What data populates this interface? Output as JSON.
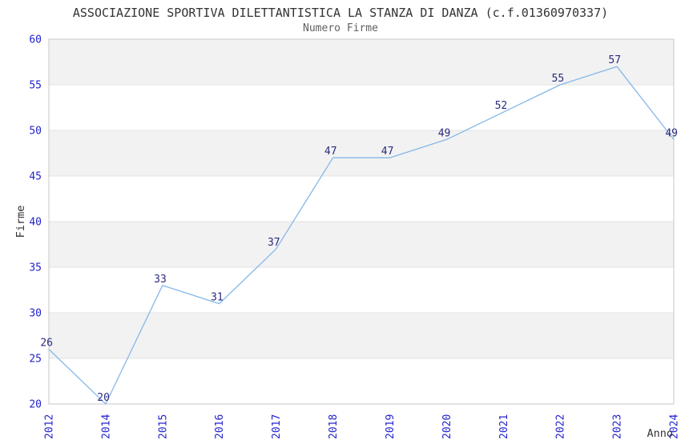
{
  "chart_data": {
    "type": "line",
    "title": "ASSOCIAZIONE SPORTIVA DILETTANTISTICA LA STANZA DI DANZA (c.f.01360970337)",
    "subtitle": "Numero Firme",
    "x": [
      "2012",
      "2014",
      "2015",
      "2016",
      "2017",
      "2018",
      "2019",
      "2020",
      "2021",
      "2022",
      "2023",
      "2024"
    ],
    "values": [
      26,
      20,
      33,
      31,
      37,
      47,
      47,
      49,
      52,
      55,
      57,
      49
    ],
    "xlabel": "Anno",
    "ylabel": "Firme",
    "ylim": [
      20,
      60
    ],
    "yticks": [
      20,
      25,
      30,
      35,
      40,
      45,
      50,
      55,
      60
    ],
    "x_tick_rotation_deg": 90,
    "point_labels_visible": true,
    "markers": "none",
    "legend": "none",
    "grid": "horizontal",
    "banded_background": true,
    "colors": {
      "line": "#85b7ea",
      "tick_label": "#2323cd",
      "data_label": "#2b2b80",
      "band": "#f2f2f2",
      "grid_line": "#e3e3e3",
      "plot_border": "#c9c9c9",
      "title": "#333333",
      "subtitle": "#606060",
      "axis_label": "#333333"
    }
  }
}
